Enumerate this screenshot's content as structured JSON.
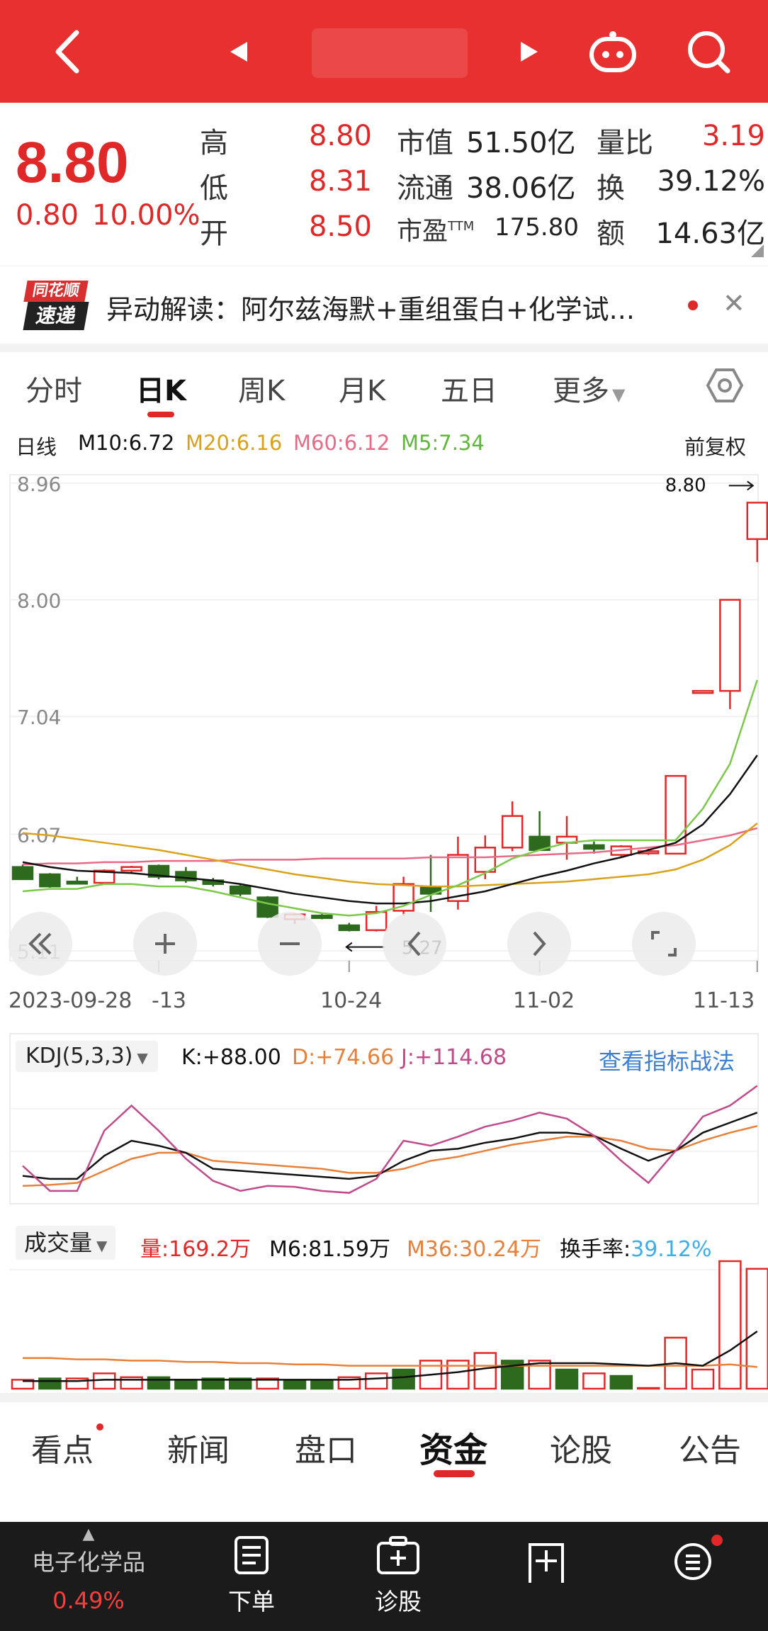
{
  "quote": {
    "price": "8.80",
    "change": "0.80",
    "change_pct": "10.00%",
    "high_label": "高",
    "high": "8.80",
    "low_label": "低",
    "low": "8.31",
    "open_label": "开",
    "open": "8.50",
    "mcap_label": "市值",
    "mcap": "51.50亿",
    "float_label": "流通",
    "float": "38.06亿",
    "pe_label": "市盈",
    "pe_sup": "TTM",
    "pe": "175.80",
    "vr_label": "量比",
    "vr": "3.19",
    "turn_label": "换",
    "turn": "39.12%",
    "amount_label": "额",
    "amount": "14.63亿"
  },
  "news": {
    "logo_top": "同花顺",
    "logo_bottom": "速递",
    "text": "异动解读：阿尔兹海默+重组蛋白+化学试..."
  },
  "tabs": [
    "分时",
    "日K",
    "周K",
    "月K",
    "五日",
    "更多"
  ],
  "active_tab": "日K",
  "legend": {
    "name": "日线",
    "m10": "M10:6.72",
    "m20": "M20:6.16",
    "m60": "M60:6.12",
    "m5": "M5:7.34",
    "adjust": "前复权"
  },
  "colors": {
    "up": "#e02828",
    "down": "#2d6a1e",
    "m5": "#7cc84a",
    "m10": "#111111",
    "m20": "#d9a21a",
    "m60": "#e76a86",
    "kdj_k": "#111111",
    "kdj_d": "#e8803a",
    "kdj_j": "#c04a8a",
    "link": "#3d7fd0"
  },
  "chart_data": {
    "type": "candlestick",
    "y_ticks": [
      "8.96",
      "8.00",
      "7.04",
      "6.07",
      "5.11"
    ],
    "ylim": [
      5.11,
      8.96
    ],
    "x_labels": [
      "2023-09-28",
      "-13",
      "10-24",
      "11-02",
      "11-13"
    ],
    "max_marker": "8.80",
    "min_marker": "5.27",
    "candles": [
      {
        "o": 5.8,
        "h": 5.82,
        "l": 5.7,
        "c": 5.7
      },
      {
        "o": 5.74,
        "h": 5.75,
        "l": 5.63,
        "c": 5.64
      },
      {
        "o": 5.68,
        "h": 5.72,
        "l": 5.66,
        "c": 5.67
      },
      {
        "o": 5.67,
        "h": 5.78,
        "l": 5.66,
        "c": 5.77
      },
      {
        "o": 5.77,
        "h": 5.81,
        "l": 5.75,
        "c": 5.8
      },
      {
        "o": 5.81,
        "h": 5.82,
        "l": 5.7,
        "c": 5.72
      },
      {
        "o": 5.76,
        "h": 5.8,
        "l": 5.67,
        "c": 5.69
      },
      {
        "o": 5.69,
        "h": 5.71,
        "l": 5.64,
        "c": 5.66
      },
      {
        "o": 5.64,
        "h": 5.66,
        "l": 5.56,
        "c": 5.58
      },
      {
        "o": 5.55,
        "h": 5.56,
        "l": 5.38,
        "c": 5.39
      },
      {
        "o": 5.37,
        "h": 5.42,
        "l": 5.33,
        "c": 5.41
      },
      {
        "o": 5.4,
        "h": 5.42,
        "l": 5.37,
        "c": 5.38
      },
      {
        "o": 5.32,
        "h": 5.34,
        "l": 5.27,
        "c": 5.28
      },
      {
        "o": 5.28,
        "h": 5.48,
        "l": 5.27,
        "c": 5.43
      },
      {
        "o": 5.44,
        "h": 5.72,
        "l": 5.4,
        "c": 5.66
      },
      {
        "o": 5.63,
        "h": 5.9,
        "l": 5.43,
        "c": 5.58
      },
      {
        "o": 5.52,
        "h": 6.05,
        "l": 5.45,
        "c": 5.9
      },
      {
        "o": 5.76,
        "h": 6.06,
        "l": 5.7,
        "c": 5.96
      },
      {
        "o": 5.96,
        "h": 6.34,
        "l": 5.93,
        "c": 6.22
      },
      {
        "o": 6.05,
        "h": 6.26,
        "l": 5.97,
        "c": 5.94
      },
      {
        "o": 6.0,
        "h": 6.22,
        "l": 5.86,
        "c": 6.05
      },
      {
        "o": 5.98,
        "h": 6.01,
        "l": 5.91,
        "c": 5.95
      },
      {
        "o": 5.9,
        "h": 5.98,
        "l": 5.88,
        "c": 5.97
      },
      {
        "o": 5.92,
        "h": 5.95,
        "l": 5.9,
        "c": 5.93
      },
      {
        "o": 5.91,
        "h": 6.55,
        "l": 5.91,
        "c": 6.55
      },
      {
        "o": 7.25,
        "h": 7.25,
        "l": 7.25,
        "c": 7.25
      },
      {
        "o": 7.25,
        "h": 8.0,
        "l": 7.1,
        "c": 8.0
      },
      {
        "o": 8.5,
        "h": 8.8,
        "l": 8.31,
        "c": 8.8
      }
    ],
    "ma5": [
      5.6,
      5.62,
      5.62,
      5.66,
      5.66,
      5.64,
      5.64,
      5.6,
      5.55,
      5.5,
      5.46,
      5.42,
      5.4,
      5.42,
      5.48,
      5.57,
      5.65,
      5.75,
      5.87,
      5.94,
      6.0,
      6.02,
      6.02,
      6.02,
      6.02,
      6.28,
      6.65,
      7.34
    ],
    "ma10": [
      5.84,
      5.8,
      5.77,
      5.76,
      5.75,
      5.73,
      5.71,
      5.69,
      5.66,
      5.62,
      5.58,
      5.55,
      5.52,
      5.5,
      5.5,
      5.52,
      5.56,
      5.6,
      5.66,
      5.72,
      5.77,
      5.83,
      5.88,
      5.94,
      6.0,
      6.15,
      6.4,
      6.72
    ],
    "ma20": [
      6.08,
      6.06,
      6.03,
      6.0,
      5.97,
      5.94,
      5.9,
      5.86,
      5.82,
      5.78,
      5.74,
      5.71,
      5.68,
      5.66,
      5.65,
      5.64,
      5.64,
      5.65,
      5.66,
      5.67,
      5.68,
      5.7,
      5.72,
      5.74,
      5.78,
      5.86,
      5.98,
      6.16
    ],
    "ma60": [
      5.82,
      5.83,
      5.83,
      5.84,
      5.84,
      5.85,
      5.85,
      5.85,
      5.86,
      5.86,
      5.86,
      5.87,
      5.87,
      5.87,
      5.87,
      5.88,
      5.88,
      5.88,
      5.89,
      5.9,
      5.91,
      5.92,
      5.94,
      5.96,
      5.98,
      6.02,
      6.06,
      6.12
    ]
  },
  "kdj": {
    "title": "KDJ(5,3,3)",
    "k": "K:+88.00",
    "d": "D:+74.66",
    "j": "J:+114.68",
    "link": "查看指标战法",
    "k_values": [
      25,
      22,
      22,
      45,
      60,
      55,
      48,
      32,
      30,
      28,
      26,
      24,
      22,
      25,
      40,
      50,
      52,
      58,
      62,
      68,
      68,
      65,
      52,
      40,
      50,
      68,
      78,
      88
    ],
    "d_values": [
      15,
      16,
      18,
      30,
      42,
      48,
      48,
      40,
      38,
      36,
      34,
      32,
      28,
      28,
      32,
      40,
      44,
      50,
      56,
      60,
      64,
      64,
      60,
      52,
      50,
      60,
      68,
      74.66
    ],
    "j_values": [
      35,
      10,
      10,
      70,
      95,
      70,
      42,
      20,
      10,
      15,
      14,
      10,
      8,
      22,
      60,
      55,
      64,
      74,
      80,
      88,
      82,
      65,
      40,
      18,
      50,
      84,
      95,
      114.68
    ]
  },
  "volume": {
    "title": "成交量",
    "vol": "量:169.2万",
    "m6": "M6:81.59万",
    "m36": "M36:30.24万",
    "turnover_label": "换手率:",
    "turnover": "39.12%",
    "bars": [
      {
        "v": 7,
        "up": true
      },
      {
        "v": 8,
        "up": false
      },
      {
        "v": 8,
        "up": true
      },
      {
        "v": 12,
        "up": true
      },
      {
        "v": 9,
        "up": true
      },
      {
        "v": 9,
        "up": false
      },
      {
        "v": 7,
        "up": false
      },
      {
        "v": 8,
        "up": false
      },
      {
        "v": 8,
        "up": false
      },
      {
        "v": 8,
        "up": true
      },
      {
        "v": 6,
        "up": false
      },
      {
        "v": 6,
        "up": false
      },
      {
        "v": 9,
        "up": true
      },
      {
        "v": 12,
        "up": true
      },
      {
        "v": 15,
        "up": false
      },
      {
        "v": 22,
        "up": true
      },
      {
        "v": 22,
        "up": true
      },
      {
        "v": 28,
        "up": true
      },
      {
        "v": 22,
        "up": false
      },
      {
        "v": 22,
        "up": true
      },
      {
        "v": 15,
        "up": false
      },
      {
        "v": 12,
        "up": true
      },
      {
        "v": 10,
        "up": false
      },
      {
        "v": 0,
        "up": true
      },
      {
        "v": 40,
        "up": true
      },
      {
        "v": 15,
        "up": true
      },
      {
        "v": 100,
        "up": true
      },
      {
        "v": 94,
        "up": true
      }
    ],
    "m6_values": [
      6,
      6,
      6,
      7,
      7,
      7,
      7,
      7,
      7,
      7,
      7,
      7,
      7,
      8,
      9,
      11,
      13,
      16,
      18,
      20,
      20,
      20,
      19,
      18,
      20,
      18,
      30,
      45
    ],
    "m36_values": [
      24,
      24,
      23,
      23,
      22,
      22,
      21,
      21,
      20,
      20,
      19,
      19,
      18,
      18,
      18,
      18,
      18,
      18,
      18,
      18,
      18,
      18,
      18,
      18,
      18,
      18,
      19,
      17
    ]
  },
  "bottom_tabs": [
    "看点",
    "新闻",
    "盘口",
    "资金",
    "论股",
    "公告"
  ],
  "active_bottom_tab": "资金",
  "bottom_bar": {
    "sector": "电子化学品",
    "sector_pct": "0.49%",
    "order": "下单",
    "diagnose": "诊股"
  }
}
